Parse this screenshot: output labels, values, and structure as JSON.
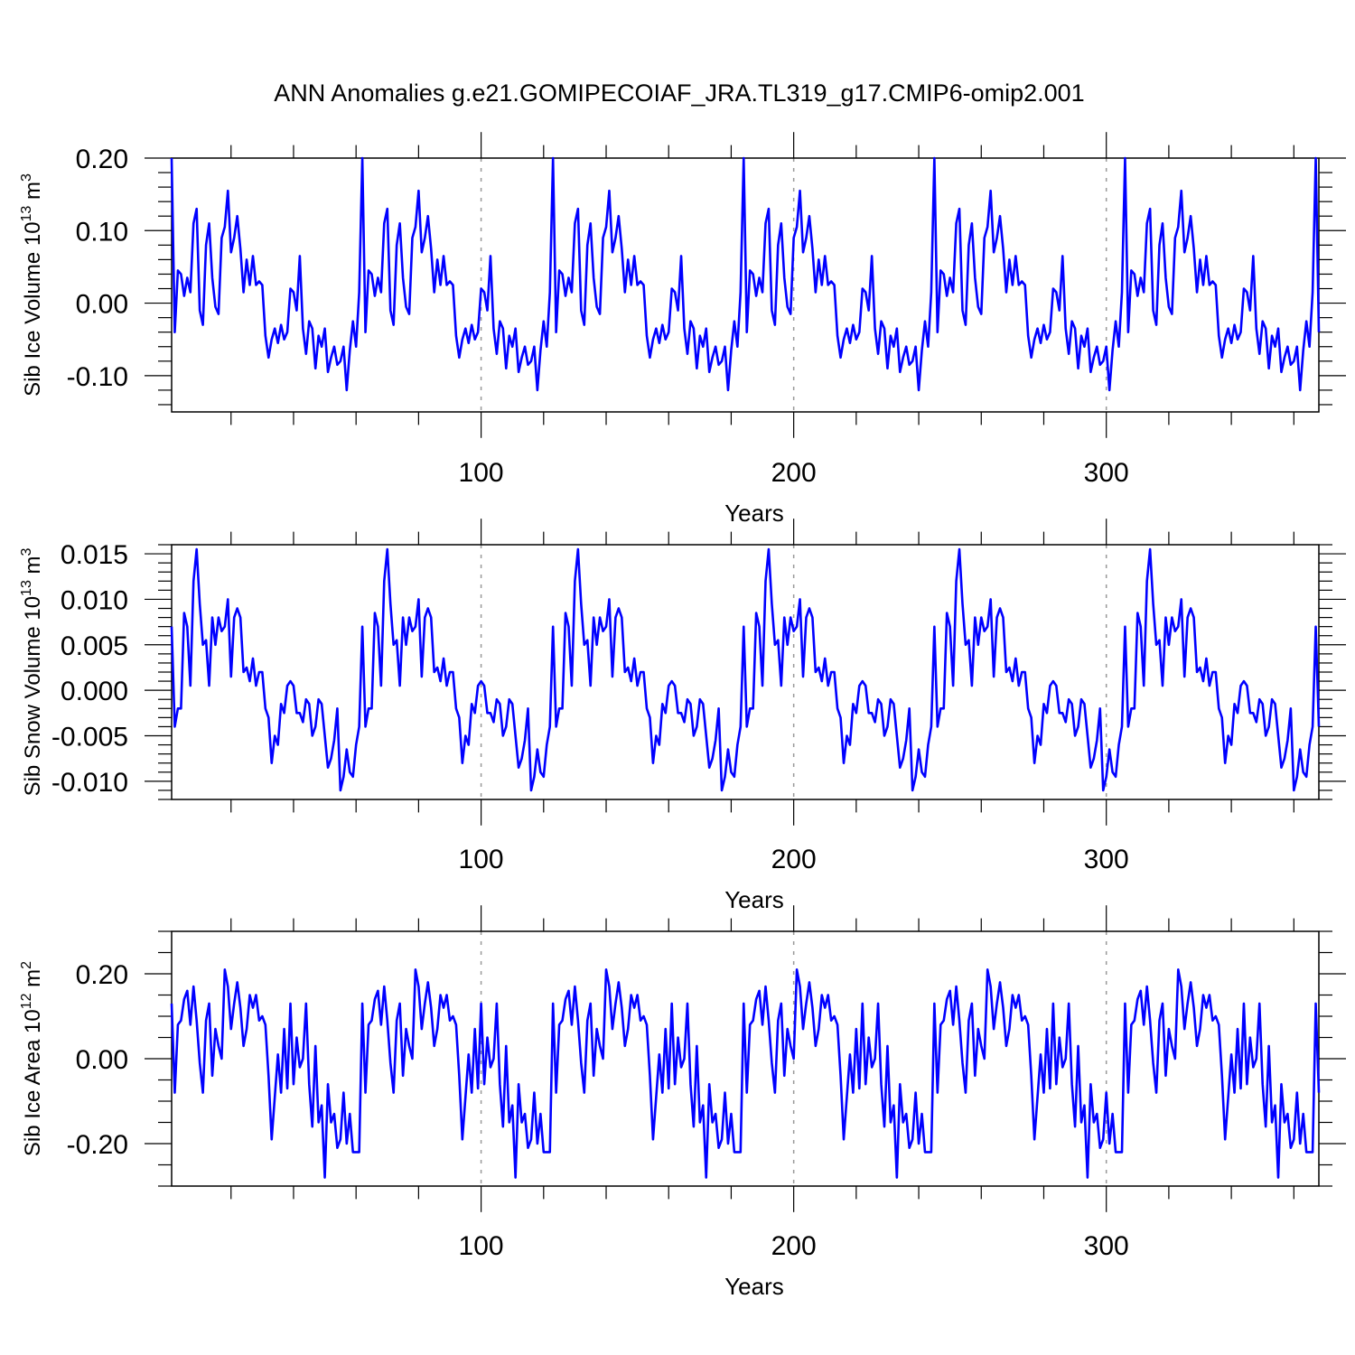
{
  "title": "ANN Anomalies g.e21.GOMIPECOIAF_JRA.TL319_g17.CMIP6-omip2.001",
  "colors": {
    "series": "#0000ff",
    "axis": "#000000",
    "grid": "#999999",
    "background": "#ffffff"
  },
  "chart_data": [
    {
      "type": "line",
      "ylabel": {
        "text": "Sib Ice Volume 10",
        "exp": "13",
        "unit_text": " m",
        "unit_exp": "3"
      },
      "xlabel": "Years",
      "xlim": [
        1,
        368
      ],
      "ylim": [
        -0.15,
        0.2
      ],
      "x_ticks": [
        100,
        200,
        300
      ],
      "x_tick_labels": [
        "100",
        "200",
        "300"
      ],
      "x_minor_step": 20,
      "y_ticks": [
        0.2,
        0.1,
        0.0,
        -0.1
      ],
      "y_tick_labels": [
        "0.20",
        "0.10",
        "0.00",
        "-0.10"
      ],
      "y_minor_step": 0.02,
      "grid": "vertical dashed at major x ticks",
      "period": 61,
      "base_cycle": [
        0.2,
        -0.04,
        0.045,
        0.04,
        0.01,
        0.035,
        0.015,
        0.11,
        0.13,
        -0.01,
        -0.03,
        0.08,
        0.11,
        0.035,
        -0.005,
        -0.015,
        0.09,
        0.105,
        0.155,
        0.07,
        0.09,
        0.12,
        0.075,
        0.015,
        0.06,
        0.025,
        0.065,
        0.025,
        0.03,
        0.025,
        -0.045,
        -0.075,
        -0.05,
        -0.035,
        -0.055,
        -0.03,
        -0.05,
        -0.04,
        0.02,
        0.015,
        -0.01,
        0.065,
        -0.035,
        -0.07,
        -0.025,
        -0.035,
        -0.09,
        -0.045,
        -0.06,
        -0.035,
        -0.095,
        -0.075,
        -0.06,
        -0.085,
        -0.08,
        -0.06,
        -0.12,
        -0.065,
        -0.025,
        -0.06,
        0.015
      ],
      "series": [
        {
          "name": "Sib Ice Volume",
          "values": []
        }
      ]
    },
    {
      "type": "line",
      "ylabel": {
        "text": "Sib Snow Volume 10",
        "exp": "13",
        "unit_text": " m",
        "unit_exp": "3"
      },
      "xlabel": "Years",
      "xlim": [
        1,
        368
      ],
      "ylim": [
        -0.012,
        0.016
      ],
      "x_ticks": [
        100,
        200,
        300
      ],
      "x_tick_labels": [
        "100",
        "200",
        "300"
      ],
      "x_minor_step": 20,
      "y_ticks": [
        0.015,
        0.01,
        0.005,
        0.0,
        -0.005,
        -0.01
      ],
      "y_tick_labels": [
        "0.015",
        "0.010",
        "0.005",
        "0.000",
        "-0.005",
        "-0.010"
      ],
      "y_minor_step": 0.001,
      "grid": "vertical dashed at major x ticks",
      "period": 61,
      "base_cycle": [
        0.007,
        -0.004,
        -0.002,
        -0.002,
        0.0085,
        0.007,
        0.0005,
        0.012,
        0.0155,
        0.0095,
        0.005,
        0.0055,
        0.0005,
        0.008,
        0.005,
        0.008,
        0.0065,
        0.007,
        0.01,
        0.0015,
        0.008,
        0.009,
        0.008,
        0.002,
        0.0025,
        0.001,
        0.0035,
        0.0005,
        0.002,
        0.002,
        -0.002,
        -0.003,
        -0.008,
        -0.005,
        -0.006,
        -0.0015,
        -0.0025,
        0.0005,
        0.001,
        0.0005,
        -0.0025,
        -0.0025,
        -0.0035,
        -0.001,
        -0.0015,
        -0.005,
        -0.004,
        -0.001,
        -0.0015,
        -0.005,
        -0.0085,
        -0.0075,
        -0.0055,
        -0.002,
        -0.011,
        -0.0095,
        -0.0065,
        -0.009,
        -0.0095,
        -0.006,
        -0.004
      ],
      "series": [
        {
          "name": "Sib Snow Volume",
          "values": []
        }
      ]
    },
    {
      "type": "line",
      "ylabel": {
        "text": "Sib Ice Area 10",
        "exp": "12",
        "unit_text": " m",
        "unit_exp": "2"
      },
      "xlabel": "Years",
      "xlim": [
        1,
        368
      ],
      "ylim": [
        -0.3,
        0.3
      ],
      "x_ticks": [
        100,
        200,
        300
      ],
      "x_tick_labels": [
        "100",
        "200",
        "300"
      ],
      "x_minor_step": 20,
      "y_ticks": [
        0.2,
        0.0,
        -0.2
      ],
      "y_tick_labels": [
        "0.20",
        "0.00",
        "-0.20"
      ],
      "y_minor_step": 0.05,
      "grid": "vertical dashed at major x ticks",
      "period": 61,
      "base_cycle": [
        0.13,
        -0.08,
        0.08,
        0.09,
        0.14,
        0.16,
        0.08,
        0.17,
        0.09,
        -0.01,
        -0.08,
        0.09,
        0.13,
        -0.04,
        0.07,
        0.03,
        0.0,
        0.21,
        0.17,
        0.07,
        0.13,
        0.18,
        0.12,
        0.03,
        0.07,
        0.15,
        0.12,
        0.15,
        0.09,
        0.1,
        0.08,
        -0.04,
        -0.19,
        -0.09,
        0.01,
        -0.08,
        0.07,
        -0.07,
        0.13,
        -0.06,
        0.05,
        -0.02,
        0.0,
        0.13,
        -0.06,
        -0.16,
        0.03,
        -0.15,
        -0.11,
        -0.28,
        -0.06,
        -0.15,
        -0.13,
        -0.21,
        -0.19,
        -0.08,
        -0.2,
        -0.13,
        -0.22,
        -0.22,
        -0.22
      ],
      "series": [
        {
          "name": "Sib Ice Area",
          "values": []
        }
      ]
    }
  ]
}
